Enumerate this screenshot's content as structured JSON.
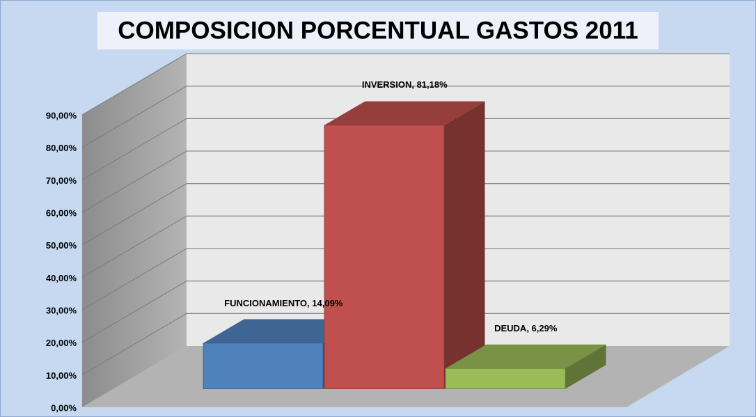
{
  "chart_data": {
    "type": "bar3d",
    "title": "COMPOSICION PORCENTUAL GASTOS 2011",
    "values": [
      14.09,
      81.18,
      6.29
    ],
    "value_labels": [
      "FUNCIONAMIENTO, 14,09%",
      "INVERSION, 81,18%",
      "DEUDA, 6,29%"
    ],
    "colors": [
      "#4f81bd",
      "#c0504d",
      "#9bbb59"
    ],
    "ylim": [
      0,
      90
    ],
    "yticks": [
      {
        "value": 0,
        "label": "0,00%"
      },
      {
        "value": 10,
        "label": "10,00%"
      },
      {
        "value": 20,
        "label": "20,00%"
      },
      {
        "value": 30,
        "label": "30,00%"
      },
      {
        "value": 40,
        "label": "40,00%"
      },
      {
        "value": 50,
        "label": "50,00%"
      },
      {
        "value": 60,
        "label": "60,00%"
      },
      {
        "value": 70,
        "label": "70,00%"
      },
      {
        "value": 80,
        "label": "80,00%"
      },
      {
        "value": 90,
        "label": "90,00%"
      }
    ],
    "grid": true
  }
}
